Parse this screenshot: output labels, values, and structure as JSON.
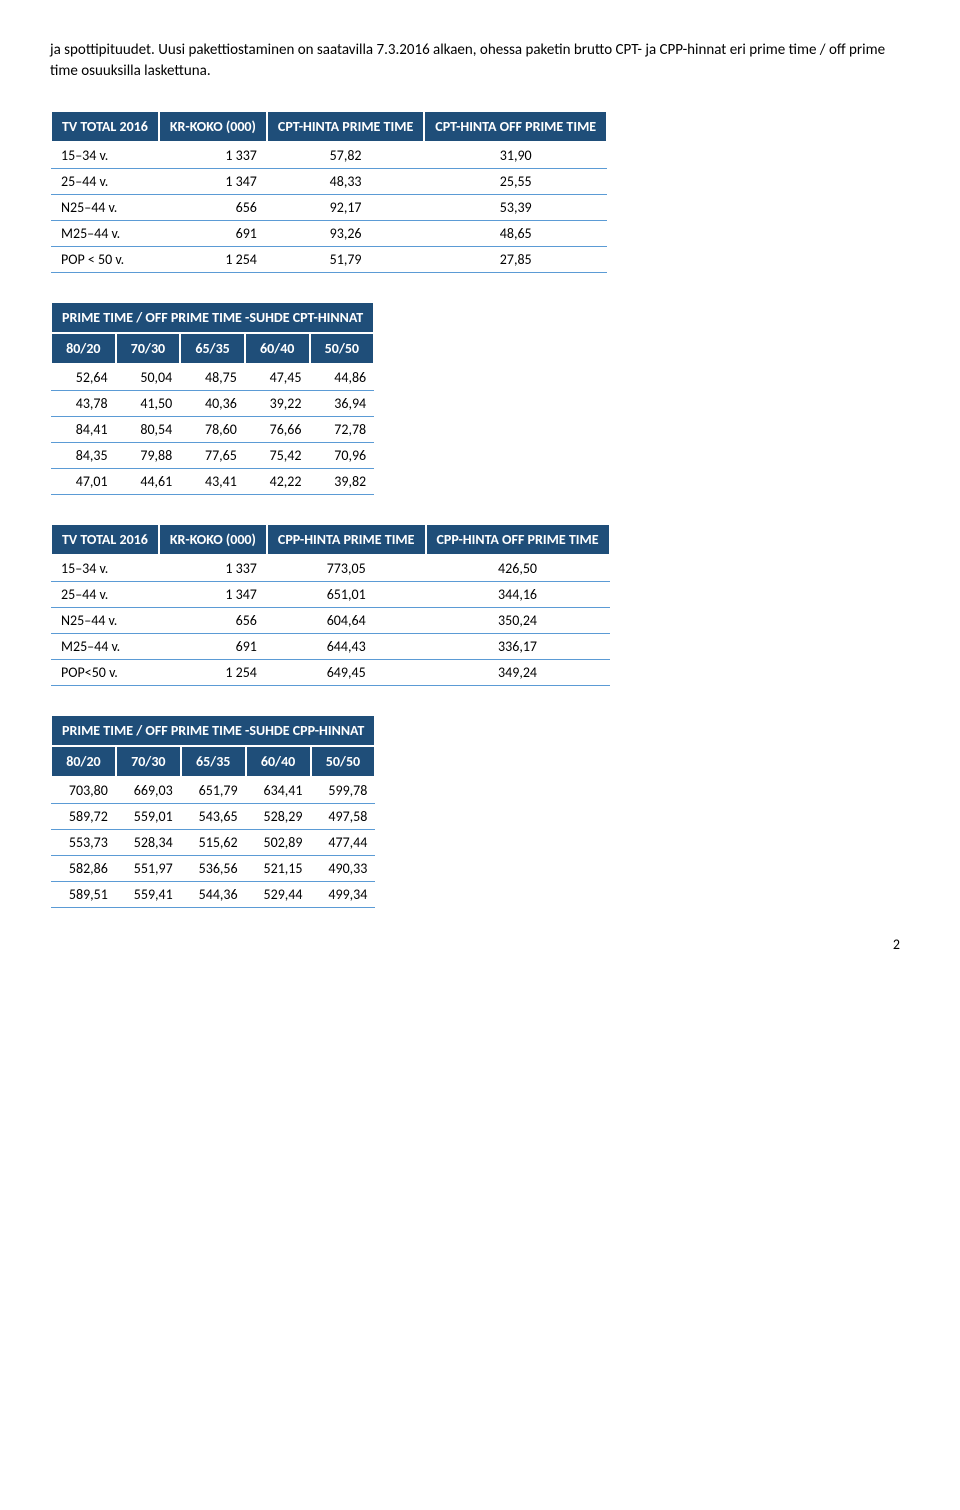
{
  "intro": "ja spottipituudet. Uusi pakettiostaminen on saatavilla 7.3.2016 alkaen, ohessa paketin brutto CPT- ja CPP-hinnat eri prime time / off prime time osuuksilla laskettuna.",
  "colors": {
    "header_bg": "#1f4e79",
    "header_fg": "#ffffff",
    "row_border": "#5b9bd5"
  },
  "cpt_table": {
    "title": "TV TOTAL 2016",
    "headers": {
      "krkoko": "KR-KOKO (000)",
      "prime": "CPT-HINTA PRIME TIME",
      "offprime": "CPT-HINTA OFF PRIME TIME"
    },
    "rows": [
      {
        "label": "15–34 v.",
        "krkoko": "1 337",
        "prime": "57,82",
        "offprime": "31,90"
      },
      {
        "label": "25–44 v.",
        "krkoko": "1 347",
        "prime": "48,33",
        "offprime": "25,55"
      },
      {
        "label": "N25–44 v.",
        "krkoko": "656",
        "prime": "92,17",
        "offprime": "53,39"
      },
      {
        "label": "M25–44 v.",
        "krkoko": "691",
        "prime": "93,26",
        "offprime": "48,65"
      },
      {
        "label": "POP < 50 v.",
        "krkoko": "1 254",
        "prime": "51,79",
        "offprime": "27,85"
      }
    ]
  },
  "cpt_ratio": {
    "title": "PRIME TIME / OFF PRIME TIME -SUHDE CPT-HINNAT",
    "headers": [
      "80/20",
      "70/30",
      "65/35",
      "60/40",
      "50/50"
    ],
    "rows": [
      [
        "52,64",
        "50,04",
        "48,75",
        "47,45",
        "44,86"
      ],
      [
        "43,78",
        "41,50",
        "40,36",
        "39,22",
        "36,94"
      ],
      [
        "84,41",
        "80,54",
        "78,60",
        "76,66",
        "72,78"
      ],
      [
        "84,35",
        "79,88",
        "77,65",
        "75,42",
        "70,96"
      ],
      [
        "47,01",
        "44,61",
        "43,41",
        "42,22",
        "39,82"
      ]
    ]
  },
  "cpp_table": {
    "title": "TV TOTAL 2016",
    "headers": {
      "krkoko": "KR-KOKO (000)",
      "prime": "CPP-HINTA PRIME TIME",
      "offprime": "CPP-HINTA OFF PRIME TIME"
    },
    "rows": [
      {
        "label": "15–34 v.",
        "krkoko": "1 337",
        "prime": "773,05",
        "offprime": "426,50"
      },
      {
        "label": "25–44 v.",
        "krkoko": "1 347",
        "prime": "651,01",
        "offprime": "344,16"
      },
      {
        "label": "N25–44 v.",
        "krkoko": "656",
        "prime": "604,64",
        "offprime": "350,24"
      },
      {
        "label": "M25–44 v.",
        "krkoko": "691",
        "prime": "644,43",
        "offprime": "336,17"
      },
      {
        "label": "POP<50 v.",
        "krkoko": "1 254",
        "prime": "649,45",
        "offprime": "349,24"
      }
    ]
  },
  "cpp_ratio": {
    "title": "PRIME TIME / OFF PRIME TIME -SUHDE CPP-HINNAT",
    "headers": [
      "80/20",
      "70/30",
      "65/35",
      "60/40",
      "50/50"
    ],
    "rows": [
      [
        "703,80",
        "669,03",
        "651,79",
        "634,41",
        "599,78"
      ],
      [
        "589,72",
        "559,01",
        "543,65",
        "528,29",
        "497,58"
      ],
      [
        "553,73",
        "528,34",
        "515,62",
        "502,89",
        "477,44"
      ],
      [
        "582,86",
        "551,97",
        "536,56",
        "521,15",
        "490,33"
      ],
      [
        "589,51",
        "559,41",
        "544,36",
        "529,44",
        "499,34"
      ]
    ]
  },
  "page_number": "2"
}
